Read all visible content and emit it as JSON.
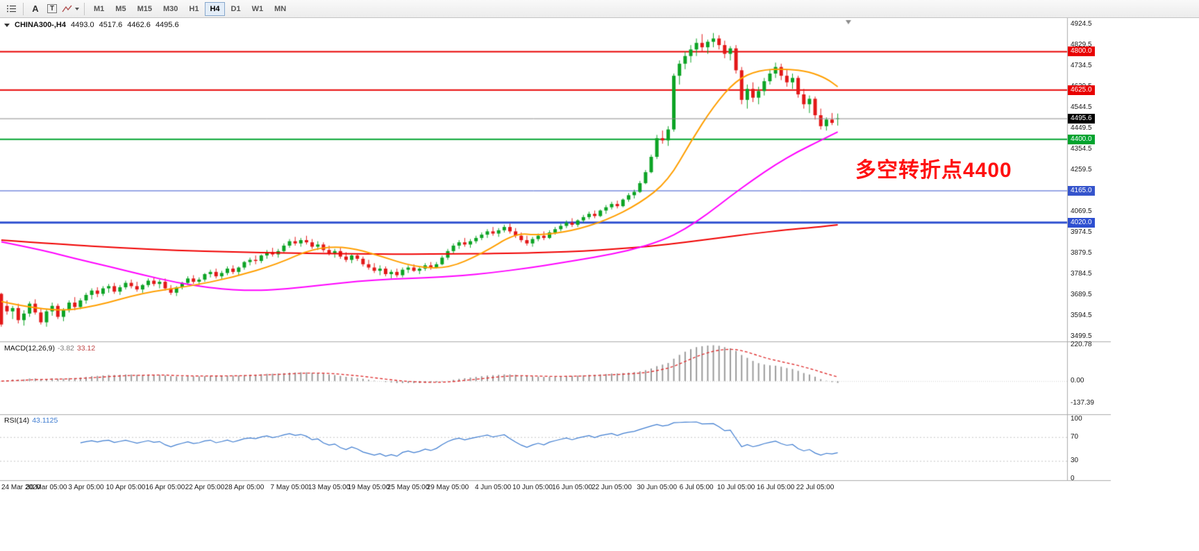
{
  "toolbar": {
    "icons": {
      "text_tool": "A",
      "label_tool": "T"
    },
    "timeframes": [
      "M1",
      "M5",
      "M15",
      "M30",
      "H1",
      "H4",
      "D1",
      "W1",
      "MN"
    ],
    "active_timeframe": "H4"
  },
  "chart": {
    "title": {
      "symbol_period": "CHINA300-,H4",
      "open": "4493.0",
      "high": "4517.6",
      "low": "4462.6",
      "close": "4495.6"
    },
    "annotation": {
      "text": "多空转折点4400",
      "color": "#ff1010"
    },
    "price_axis": [
      "4924.5",
      "4829.5",
      "4734.5",
      "4639.5",
      "4544.5",
      "4449.5",
      "4354.5",
      "4259.5",
      "4164.5",
      "4069.5",
      "3974.5",
      "3879.5",
      "3784.5",
      "3689.5",
      "3594.5",
      "3499.5"
    ],
    "hlines": [
      {
        "label": "4800.0",
        "price": 4800.0,
        "color": "#e80000",
        "width": 2
      },
      {
        "label": "4625.0",
        "price": 4625.0,
        "color": "#e80000",
        "width": 2
      },
      {
        "label": "4400.0",
        "price": 4400.0,
        "color": "#00a32e",
        "width": 2
      },
      {
        "label": "4165.0",
        "price": 4165.0,
        "color": "#3554cc",
        "width": 1
      },
      {
        "label": "4020.0",
        "price": 4020.0,
        "color": "#2e4fd0",
        "width": 3
      }
    ],
    "current_price": {
      "label": "4495.6",
      "value": 4495.6,
      "line_color": "#8a8a8a",
      "badge_bg": "#000000"
    },
    "time_axis": [
      {
        "label": "24 Mar 2020",
        "i": 1
      },
      {
        "label": "30 Mar 05:00",
        "i": 8
      },
      {
        "label": "3 Apr 05:00",
        "i": 15
      },
      {
        "label": "10 Apr 05:00",
        "i": 22
      },
      {
        "label": "16 Apr 05:00",
        "i": 29
      },
      {
        "label": "22 Apr 05:00",
        "i": 36
      },
      {
        "label": "28 Apr 05:00",
        "i": 43
      },
      {
        "label": "7 May 05:00",
        "i": 51
      },
      {
        "label": "13 May 05:00",
        "i": 58
      },
      {
        "label": "19 May 05:00",
        "i": 65
      },
      {
        "label": "25 May 05:00",
        "i": 72
      },
      {
        "label": "29 May 05:00",
        "i": 79
      },
      {
        "label": "4 Jun 05:00",
        "i": 87
      },
      {
        "label": "10 Jun 05:00",
        "i": 94
      },
      {
        "label": "16 Jun 05:00",
        "i": 101
      },
      {
        "label": "22 Jun 05:00",
        "i": 108
      },
      {
        "label": "30 Jun 05:00",
        "i": 116
      },
      {
        "label": "6 Jul 05:00",
        "i": 123
      },
      {
        "label": "10 Jul 05:00",
        "i": 130
      },
      {
        "label": "16 Jul 05:00",
        "i": 137
      },
      {
        "label": "22 Jul 05:00",
        "i": 144
      }
    ]
  },
  "macd": {
    "label": "MACD(12,26,9)",
    "value_main": "-3.82",
    "value_signal": "33.12",
    "axis": [
      "220.78",
      "0.00",
      "-137.39"
    ]
  },
  "rsi": {
    "label": "RSI(14)",
    "value": "43.1125",
    "axis": [
      "100",
      "70",
      "30",
      "0"
    ]
  },
  "chart_data": {
    "type": "candlestick",
    "symbol": "CHINA300-",
    "timeframe": "H4",
    "price_range": [
      3481,
      4947
    ],
    "candles": [
      [
        3695,
        3700,
        3545,
        3555
      ],
      [
        3640,
        3665,
        3600,
        3615
      ],
      [
        3615,
        3640,
        3580,
        3630
      ],
      [
        3630,
        3650,
        3560,
        3575
      ],
      [
        3575,
        3620,
        3550,
        3605
      ],
      [
        3605,
        3660,
        3590,
        3650
      ],
      [
        3650,
        3670,
        3600,
        3610
      ],
      [
        3610,
        3630,
        3555,
        3565
      ],
      [
        3565,
        3625,
        3545,
        3615
      ],
      [
        3615,
        3655,
        3595,
        3640
      ],
      [
        3640,
        3650,
        3580,
        3590
      ],
      [
        3590,
        3630,
        3570,
        3620
      ],
      [
        3620,
        3665,
        3610,
        3655
      ],
      [
        3655,
        3680,
        3620,
        3635
      ],
      [
        3635,
        3675,
        3625,
        3665
      ],
      [
        3665,
        3700,
        3650,
        3690
      ],
      [
        3690,
        3720,
        3670,
        3710
      ],
      [
        3710,
        3725,
        3680,
        3695
      ],
      [
        3695,
        3730,
        3685,
        3720
      ],
      [
        3720,
        3740,
        3700,
        3730
      ],
      [
        3730,
        3745,
        3695,
        3705
      ],
      [
        3705,
        3735,
        3690,
        3725
      ],
      [
        3725,
        3755,
        3715,
        3745
      ],
      [
        3745,
        3760,
        3720,
        3730
      ],
      [
        3730,
        3750,
        3705,
        3715
      ],
      [
        3715,
        3740,
        3700,
        3735
      ],
      [
        3735,
        3765,
        3725,
        3755
      ],
      [
        3755,
        3770,
        3730,
        3740
      ],
      [
        3740,
        3760,
        3720,
        3750
      ],
      [
        3750,
        3765,
        3710,
        3720
      ],
      [
        3720,
        3735,
        3690,
        3700
      ],
      [
        3700,
        3730,
        3685,
        3725
      ],
      [
        3725,
        3750,
        3715,
        3745
      ],
      [
        3745,
        3775,
        3735,
        3765
      ],
      [
        3765,
        3780,
        3740,
        3750
      ],
      [
        3750,
        3770,
        3735,
        3760
      ],
      [
        3760,
        3790,
        3750,
        3785
      ],
      [
        3785,
        3805,
        3770,
        3795
      ],
      [
        3795,
        3810,
        3765,
        3775
      ],
      [
        3775,
        3800,
        3760,
        3790
      ],
      [
        3790,
        3820,
        3780,
        3810
      ],
      [
        3810,
        3825,
        3785,
        3795
      ],
      [
        3795,
        3820,
        3780,
        3815
      ],
      [
        3815,
        3845,
        3805,
        3840
      ],
      [
        3840,
        3860,
        3825,
        3850
      ],
      [
        3850,
        3870,
        3830,
        3845
      ],
      [
        3845,
        3875,
        3835,
        3870
      ],
      [
        3870,
        3895,
        3855,
        3885
      ],
      [
        3885,
        3905,
        3865,
        3875
      ],
      [
        3875,
        3900,
        3860,
        3890
      ],
      [
        3890,
        3925,
        3880,
        3915
      ],
      [
        3915,
        3945,
        3905,
        3935
      ],
      [
        3935,
        3955,
        3915,
        3925
      ],
      [
        3925,
        3950,
        3910,
        3940
      ],
      [
        3940,
        3960,
        3920,
        3930
      ],
      [
        3930,
        3945,
        3900,
        3910
      ],
      [
        3910,
        3935,
        3895,
        3920
      ],
      [
        3920,
        3930,
        3885,
        3895
      ],
      [
        3895,
        3915,
        3870,
        3880
      ],
      [
        3880,
        3900,
        3860,
        3890
      ],
      [
        3890,
        3905,
        3855,
        3865
      ],
      [
        3865,
        3885,
        3840,
        3850
      ],
      [
        3850,
        3875,
        3835,
        3870
      ],
      [
        3870,
        3880,
        3845,
        3855
      ],
      [
        3855,
        3865,
        3820,
        3830
      ],
      [
        3830,
        3850,
        3805,
        3815
      ],
      [
        3815,
        3835,
        3790,
        3800
      ],
      [
        3800,
        3825,
        3780,
        3810
      ],
      [
        3810,
        3820,
        3775,
        3785
      ],
      [
        3785,
        3805,
        3765,
        3795
      ],
      [
        3795,
        3810,
        3770,
        3780
      ],
      [
        3780,
        3815,
        3770,
        3805
      ],
      [
        3805,
        3825,
        3790,
        3815
      ],
      [
        3815,
        3830,
        3795,
        3800
      ],
      [
        3800,
        3820,
        3785,
        3810
      ],
      [
        3810,
        3835,
        3800,
        3825
      ],
      [
        3825,
        3840,
        3805,
        3815
      ],
      [
        3815,
        3840,
        3810,
        3830
      ],
      [
        3830,
        3870,
        3825,
        3860
      ],
      [
        3860,
        3900,
        3850,
        3890
      ],
      [
        3890,
        3925,
        3880,
        3915
      ],
      [
        3915,
        3940,
        3900,
        3930
      ],
      [
        3930,
        3950,
        3910,
        3920
      ],
      [
        3920,
        3945,
        3905,
        3935
      ],
      [
        3935,
        3960,
        3925,
        3950
      ],
      [
        3950,
        3975,
        3940,
        3965
      ],
      [
        3965,
        3990,
        3950,
        3980
      ],
      [
        3980,
        4000,
        3960,
        3970
      ],
      [
        3970,
        3995,
        3955,
        3985
      ],
      [
        3985,
        4010,
        3975,
        4000
      ],
      [
        4000,
        4015,
        3970,
        3980
      ],
      [
        3980,
        3995,
        3950,
        3960
      ],
      [
        3960,
        3975,
        3930,
        3940
      ],
      [
        3940,
        3960,
        3915,
        3925
      ],
      [
        3925,
        3955,
        3910,
        3945
      ],
      [
        3945,
        3970,
        3935,
        3960
      ],
      [
        3960,
        3980,
        3940,
        3950
      ],
      [
        3950,
        3985,
        3945,
        3975
      ],
      [
        3975,
        4000,
        3965,
        3990
      ],
      [
        3990,
        4015,
        3980,
        4005
      ],
      [
        4005,
        4030,
        3995,
        4020
      ],
      [
        4020,
        4040,
        4000,
        4010
      ],
      [
        4010,
        4035,
        4000,
        4030
      ],
      [
        4030,
        4055,
        4020,
        4045
      ],
      [
        4045,
        4070,
        4035,
        4060
      ],
      [
        4060,
        4075,
        4040,
        4050
      ],
      [
        4050,
        4080,
        4045,
        4075
      ],
      [
        4075,
        4100,
        4060,
        4090
      ],
      [
        4090,
        4115,
        4080,
        4105
      ],
      [
        4105,
        4120,
        4085,
        4095
      ],
      [
        4095,
        4130,
        4090,
        4125
      ],
      [
        4125,
        4155,
        4115,
        4145
      ],
      [
        4145,
        4170,
        4130,
        4160
      ],
      [
        4160,
        4210,
        4155,
        4200
      ],
      [
        4200,
        4260,
        4195,
        4250
      ],
      [
        4250,
        4330,
        4245,
        4320
      ],
      [
        4320,
        4420,
        4310,
        4405
      ],
      [
        4405,
        4440,
        4380,
        4395
      ],
      [
        4395,
        4460,
        4370,
        4445
      ],
      [
        4445,
        4700,
        4435,
        4690
      ],
      [
        4690,
        4760,
        4650,
        4745
      ],
      [
        4745,
        4800,
        4720,
        4780
      ],
      [
        4780,
        4830,
        4750,
        4810
      ],
      [
        4810,
        4860,
        4780,
        4840
      ],
      [
        4840,
        4880,
        4800,
        4820
      ],
      [
        4820,
        4855,
        4790,
        4845
      ],
      [
        4845,
        4885,
        4820,
        4860
      ],
      [
        4860,
        4875,
        4810,
        4830
      ],
      [
        4830,
        4850,
        4770,
        4790
      ],
      [
        4790,
        4825,
        4760,
        4815
      ],
      [
        4815,
        4830,
        4700,
        4715
      ],
      [
        4715,
        4730,
        4560,
        4580
      ],
      [
        4580,
        4650,
        4540,
        4630
      ],
      [
        4630,
        4660,
        4570,
        4590
      ],
      [
        4590,
        4640,
        4560,
        4620
      ],
      [
        4620,
        4680,
        4600,
        4665
      ],
      [
        4665,
        4720,
        4650,
        4700
      ],
      [
        4700,
        4750,
        4680,
        4730
      ],
      [
        4730,
        4745,
        4670,
        4690
      ],
      [
        4690,
        4720,
        4640,
        4660
      ],
      [
        4660,
        4700,
        4630,
        4680
      ],
      [
        4680,
        4690,
        4590,
        4605
      ],
      [
        4605,
        4630,
        4540,
        4560
      ],
      [
        4560,
        4600,
        4520,
        4585
      ],
      [
        4585,
        4595,
        4490,
        4510
      ],
      [
        4510,
        4540,
        4445,
        4460
      ],
      [
        4460,
        4500,
        4440,
        4490
      ],
      [
        4490,
        4520,
        4465,
        4475
      ],
      [
        4493,
        4517.6,
        4462.6,
        4495.6
      ]
    ],
    "overlays": {
      "ma_fast": {
        "color": "#ff9f00",
        "points": [
          [
            0,
            3660
          ],
          [
            9,
            3610
          ],
          [
            17,
            3640
          ],
          [
            25,
            3700
          ],
          [
            33,
            3728
          ],
          [
            41,
            3770
          ],
          [
            49,
            3832
          ],
          [
            55,
            3902
          ],
          [
            61,
            3912
          ],
          [
            67,
            3868
          ],
          [
            73,
            3818
          ],
          [
            79,
            3810
          ],
          [
            85,
            3878
          ],
          [
            91,
            3972
          ],
          [
            95,
            3962
          ],
          [
            101,
            3982
          ],
          [
            107,
            4030
          ],
          [
            113,
            4108
          ],
          [
            118,
            4210
          ],
          [
            122,
            4390
          ],
          [
            126,
            4550
          ],
          [
            130,
            4670
          ],
          [
            134,
            4716
          ],
          [
            139,
            4722
          ],
          [
            143,
            4708
          ],
          [
            146,
            4678
          ],
          [
            148,
            4640
          ]
        ]
      },
      "ma_mid": {
        "color": "#ff00ff",
        "points": [
          [
            0,
            3932
          ],
          [
            7,
            3896
          ],
          [
            13,
            3856
          ],
          [
            19,
            3820
          ],
          [
            25,
            3782
          ],
          [
            31,
            3746
          ],
          [
            37,
            3722
          ],
          [
            41,
            3713
          ],
          [
            45,
            3710
          ],
          [
            51,
            3718
          ],
          [
            57,
            3736
          ],
          [
            63,
            3752
          ],
          [
            69,
            3762
          ],
          [
            75,
            3768
          ],
          [
            81,
            3776
          ],
          [
            87,
            3792
          ],
          [
            93,
            3812
          ],
          [
            99,
            3836
          ],
          [
            105,
            3862
          ],
          [
            111,
            3892
          ],
          [
            117,
            3938
          ],
          [
            121,
            3990
          ],
          [
            125,
            4060
          ],
          [
            129,
            4140
          ],
          [
            133,
            4215
          ],
          [
            137,
            4285
          ],
          [
            141,
            4345
          ],
          [
            145,
            4395
          ],
          [
            148,
            4434
          ]
        ]
      },
      "ma_slow": {
        "color": "#f00000",
        "points": [
          [
            0,
            3940
          ],
          [
            11,
            3920
          ],
          [
            21,
            3905
          ],
          [
            31,
            3893
          ],
          [
            41,
            3886
          ],
          [
            51,
            3881
          ],
          [
            61,
            3878
          ],
          [
            71,
            3876
          ],
          [
            81,
            3877
          ],
          [
            91,
            3880
          ],
          [
            97,
            3884
          ],
          [
            103,
            3890
          ],
          [
            109,
            3900
          ],
          [
            115,
            3912
          ],
          [
            121,
            3930
          ],
          [
            127,
            3950
          ],
          [
            133,
            3970
          ],
          [
            139,
            3987
          ],
          [
            144,
            3999
          ],
          [
            148,
            4010
          ]
        ]
      }
    },
    "indicators": [
      {
        "name": "MACD",
        "params": [
          12,
          26,
          9
        ],
        "current": [
          -3.82,
          33.12
        ],
        "range": [
          -137.39,
          220.78
        ]
      },
      {
        "name": "RSI",
        "params": [
          14
        ],
        "current": 43.1125,
        "levels": [
          70,
          30
        ],
        "range": [
          0,
          100
        ]
      }
    ],
    "colors": {
      "bull": "#0da425",
      "bear": "#e31818",
      "macd_hist": "#9a9a9a",
      "macd_signal": "#e03030",
      "rsi_line": "#3c7bd0"
    }
  }
}
